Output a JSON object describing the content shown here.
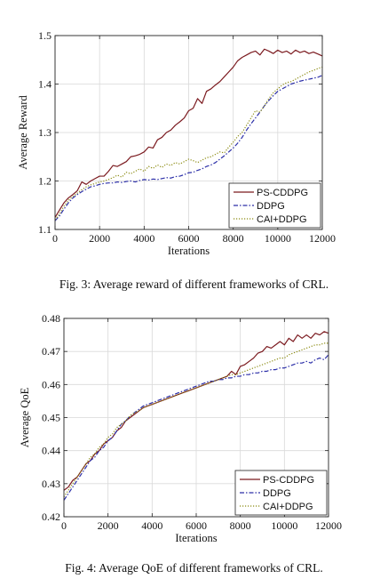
{
  "chart_data": [
    {
      "type": "line",
      "xlabel": "Iterations",
      "ylabel": "Average Reward",
      "xlim": [
        0,
        12000
      ],
      "ylim": [
        1.1,
        1.5
      ],
      "xticks": [
        0,
        2000,
        4000,
        6000,
        8000,
        10000,
        12000
      ],
      "yticks": [
        1.1,
        1.2,
        1.3,
        1.4,
        1.5
      ],
      "xtick_labels": [
        "0",
        "2000",
        "4000",
        "6000",
        "8000",
        "10000",
        "12000"
      ],
      "ytick_labels": [
        "1.1",
        "1.2",
        "1.3",
        "1.4",
        "1.5"
      ],
      "grid": true,
      "legend_position": "bottom-right",
      "series": [
        {
          "name": "PS-CDDPG",
          "color": "#7b1a1f",
          "dash": "solid",
          "x": [
            0,
            200,
            400,
            600,
            800,
            1000,
            1200,
            1400,
            1600,
            1800,
            2000,
            2200,
            2400,
            2600,
            2800,
            3000,
            3200,
            3400,
            3600,
            3800,
            4000,
            4200,
            4400,
            4600,
            4800,
            5000,
            5200,
            5400,
            5600,
            5800,
            6000,
            6200,
            6400,
            6600,
            6800,
            7000,
            7200,
            7400,
            7600,
            7800,
            8000,
            8200,
            8400,
            8600,
            8800,
            9000,
            9200,
            9400,
            9600,
            9800,
            10000,
            10200,
            10400,
            10600,
            10800,
            11000,
            11200,
            11400,
            11600,
            11800,
            12000
          ],
          "y": [
            1.125,
            1.14,
            1.155,
            1.165,
            1.172,
            1.18,
            1.198,
            1.193,
            1.2,
            1.205,
            1.21,
            1.21,
            1.22,
            1.232,
            1.23,
            1.235,
            1.24,
            1.25,
            1.252,
            1.255,
            1.26,
            1.27,
            1.268,
            1.285,
            1.29,
            1.3,
            1.305,
            1.315,
            1.322,
            1.33,
            1.345,
            1.35,
            1.37,
            1.36,
            1.385,
            1.39,
            1.398,
            1.405,
            1.415,
            1.425,
            1.435,
            1.448,
            1.455,
            1.46,
            1.465,
            1.468,
            1.46,
            1.472,
            1.468,
            1.463,
            1.47,
            1.465,
            1.468,
            1.462,
            1.47,
            1.465,
            1.468,
            1.463,
            1.466,
            1.462,
            1.458
          ]
        },
        {
          "name": "DDPG",
          "color": "#2c2fa8",
          "dash": "dashdot",
          "x": [
            0,
            200,
            400,
            600,
            800,
            1000,
            1200,
            1400,
            1600,
            1800,
            2000,
            2200,
            2400,
            2600,
            2800,
            3000,
            3200,
            3400,
            3600,
            3800,
            4000,
            4200,
            4400,
            4600,
            4800,
            5000,
            5200,
            5400,
            5600,
            5800,
            6000,
            6200,
            6400,
            6600,
            6800,
            7000,
            7200,
            7400,
            7600,
            7800,
            8000,
            8200,
            8400,
            8600,
            8800,
            9000,
            9200,
            9400,
            9600,
            9800,
            10000,
            10200,
            10400,
            10600,
            10800,
            11000,
            11200,
            11400,
            11600,
            11800,
            12000
          ],
          "y": [
            1.118,
            1.128,
            1.142,
            1.155,
            1.165,
            1.172,
            1.178,
            1.183,
            1.188,
            1.19,
            1.193,
            1.195,
            1.196,
            1.196,
            1.198,
            1.197,
            1.199,
            1.2,
            1.198,
            1.201,
            1.203,
            1.202,
            1.204,
            1.203,
            1.205,
            1.207,
            1.206,
            1.209,
            1.21,
            1.213,
            1.217,
            1.218,
            1.222,
            1.225,
            1.23,
            1.233,
            1.238,
            1.245,
            1.252,
            1.26,
            1.268,
            1.278,
            1.29,
            1.305,
            1.318,
            1.33,
            1.342,
            1.355,
            1.366,
            1.376,
            1.385,
            1.39,
            1.395,
            1.4,
            1.403,
            1.406,
            1.408,
            1.41,
            1.412,
            1.414,
            1.418
          ]
        },
        {
          "name": "CAI+DDPG",
          "color": "#8a8a10",
          "dash": "dotted",
          "x": [
            0,
            200,
            400,
            600,
            800,
            1000,
            1200,
            1400,
            1600,
            1800,
            2000,
            2200,
            2400,
            2600,
            2800,
            3000,
            3200,
            3400,
            3600,
            3800,
            4000,
            4200,
            4400,
            4600,
            4800,
            5000,
            5200,
            5400,
            5600,
            5800,
            6000,
            6200,
            6400,
            6600,
            6800,
            7000,
            7200,
            7400,
            7600,
            7800,
            8000,
            8200,
            8400,
            8600,
            8800,
            9000,
            9200,
            9400,
            9600,
            9800,
            10000,
            10200,
            10400,
            10600,
            10800,
            11000,
            11200,
            11400,
            11600,
            11800,
            12000
          ],
          "y": [
            1.12,
            1.132,
            1.148,
            1.16,
            1.168,
            1.175,
            1.182,
            1.188,
            1.192,
            1.195,
            1.198,
            1.2,
            1.203,
            1.207,
            1.212,
            1.208,
            1.218,
            1.215,
            1.22,
            1.225,
            1.22,
            1.23,
            1.226,
            1.233,
            1.228,
            1.235,
            1.232,
            1.238,
            1.235,
            1.24,
            1.245,
            1.242,
            1.238,
            1.243,
            1.248,
            1.25,
            1.255,
            1.26,
            1.258,
            1.27,
            1.28,
            1.292,
            1.3,
            1.315,
            1.33,
            1.345,
            1.342,
            1.355,
            1.37,
            1.382,
            1.39,
            1.398,
            1.403,
            1.405,
            1.41,
            1.415,
            1.42,
            1.425,
            1.428,
            1.432,
            1.435
          ]
        }
      ]
    },
    {
      "type": "line",
      "xlabel": "Iterations",
      "ylabel": "Average QoE",
      "xlim": [
        0,
        12000
      ],
      "ylim": [
        0.42,
        0.48
      ],
      "xticks": [
        0,
        2000,
        4000,
        6000,
        8000,
        10000,
        12000
      ],
      "yticks": [
        0.42,
        0.43,
        0.44,
        0.45,
        0.46,
        0.47,
        0.48
      ],
      "xtick_labels": [
        "0",
        "2000",
        "4000",
        "6000",
        "8000",
        "10000",
        "12000"
      ],
      "ytick_labels": [
        "0.42",
        "0.43",
        "0.44",
        "0.45",
        "0.46",
        "0.47",
        "0.48"
      ],
      "grid": true,
      "legend_position": "bottom-right",
      "series": [
        {
          "name": "PS-CDDPG",
          "color": "#7b1a1f",
          "dash": "solid",
          "x": [
            0,
            200,
            400,
            600,
            800,
            1000,
            1200,
            1400,
            1600,
            1800,
            2000,
            2200,
            2400,
            2600,
            2800,
            3000,
            3200,
            3400,
            3600,
            3800,
            4000,
            4200,
            4400,
            4600,
            4800,
            5000,
            5200,
            5400,
            5600,
            5800,
            6000,
            6200,
            6400,
            6600,
            6800,
            7000,
            7200,
            7400,
            7600,
            7800,
            8000,
            8200,
            8400,
            8600,
            8800,
            9000,
            9200,
            9400,
            9600,
            9800,
            10000,
            10200,
            10400,
            10600,
            10800,
            11000,
            11200,
            11400,
            11600,
            11800,
            12000
          ],
          "y": [
            0.428,
            0.429,
            0.431,
            0.432,
            0.434,
            0.436,
            0.437,
            0.439,
            0.44,
            0.442,
            0.443,
            0.444,
            0.446,
            0.447,
            0.449,
            0.45,
            0.451,
            0.452,
            0.453,
            0.4535,
            0.454,
            0.4545,
            0.455,
            0.4555,
            0.456,
            0.4565,
            0.457,
            0.4575,
            0.458,
            0.4585,
            0.459,
            0.4595,
            0.46,
            0.4605,
            0.461,
            0.4615,
            0.462,
            0.4625,
            0.464,
            0.463,
            0.4655,
            0.466,
            0.467,
            0.468,
            0.4695,
            0.47,
            0.4715,
            0.471,
            0.472,
            0.473,
            0.472,
            0.474,
            0.473,
            0.475,
            0.474,
            0.475,
            0.474,
            0.4755,
            0.475,
            0.476,
            0.4755
          ]
        },
        {
          "name": "DDPG",
          "color": "#2c2fa8",
          "dash": "dashdot",
          "x": [
            0,
            200,
            400,
            600,
            800,
            1000,
            1200,
            1400,
            1600,
            1800,
            2000,
            2200,
            2400,
            2600,
            2800,
            3000,
            3200,
            3400,
            3600,
            3800,
            4000,
            4200,
            4400,
            4600,
            4800,
            5000,
            5200,
            5400,
            5600,
            5800,
            6000,
            6200,
            6400,
            6600,
            6800,
            7000,
            7200,
            7400,
            7600,
            7800,
            8000,
            8200,
            8400,
            8600,
            8800,
            9000,
            9200,
            9400,
            9600,
            9800,
            10000,
            10200,
            10400,
            10600,
            10800,
            11000,
            11200,
            11400,
            11600,
            11800,
            12000
          ],
          "y": [
            0.425,
            0.427,
            0.429,
            0.431,
            0.433,
            0.435,
            0.437,
            0.438,
            0.44,
            0.441,
            0.443,
            0.444,
            0.446,
            0.448,
            0.449,
            0.4505,
            0.4515,
            0.4525,
            0.4535,
            0.454,
            0.4545,
            0.455,
            0.4555,
            0.456,
            0.4565,
            0.457,
            0.4575,
            0.458,
            0.4585,
            0.459,
            0.4595,
            0.46,
            0.4605,
            0.461,
            0.461,
            0.4615,
            0.4615,
            0.462,
            0.462,
            0.4625,
            0.4625,
            0.463,
            0.463,
            0.4635,
            0.4635,
            0.464,
            0.464,
            0.4645,
            0.4645,
            0.465,
            0.465,
            0.4655,
            0.466,
            0.4665,
            0.4665,
            0.467,
            0.4665,
            0.4675,
            0.468,
            0.4675,
            0.469
          ]
        },
        {
          "name": "CAI+DDPG",
          "color": "#8a8a10",
          "dash": "dotted",
          "x": [
            0,
            200,
            400,
            600,
            800,
            1000,
            1200,
            1400,
            1600,
            1800,
            2000,
            2200,
            2400,
            2600,
            2800,
            3000,
            3200,
            3400,
            3600,
            3800,
            4000,
            4200,
            4400,
            4600,
            4800,
            5000,
            5200,
            5400,
            5600,
            5800,
            6000,
            6200,
            6400,
            6600,
            6800,
            7000,
            7200,
            7400,
            7600,
            7800,
            8000,
            8200,
            8400,
            8600,
            8800,
            9000,
            9200,
            9400,
            9600,
            9800,
            10000,
            10200,
            10400,
            10600,
            10800,
            11000,
            11200,
            11400,
            11600,
            11800,
            12000
          ],
          "y": [
            0.426,
            0.428,
            0.43,
            0.432,
            0.434,
            0.436,
            0.438,
            0.439,
            0.441,
            0.442,
            0.444,
            0.445,
            0.447,
            0.448,
            0.449,
            0.4505,
            0.4515,
            0.452,
            0.453,
            0.4535,
            0.454,
            0.4545,
            0.455,
            0.4555,
            0.456,
            0.4565,
            0.457,
            0.4575,
            0.458,
            0.4585,
            0.459,
            0.4595,
            0.46,
            0.4605,
            0.461,
            0.4615,
            0.462,
            0.4625,
            0.463,
            0.463,
            0.4635,
            0.464,
            0.4645,
            0.465,
            0.4655,
            0.466,
            0.4665,
            0.467,
            0.4675,
            0.468,
            0.468,
            0.469,
            0.4695,
            0.47,
            0.4705,
            0.471,
            0.4715,
            0.472,
            0.472,
            0.4725,
            0.4725
          ]
        }
      ]
    }
  ],
  "captions": {
    "fig3": "Fig. 3: Average reward of different frameworks of CRL.",
    "fig4": "Fig. 4: Average QoE of different frameworks of CRL."
  }
}
